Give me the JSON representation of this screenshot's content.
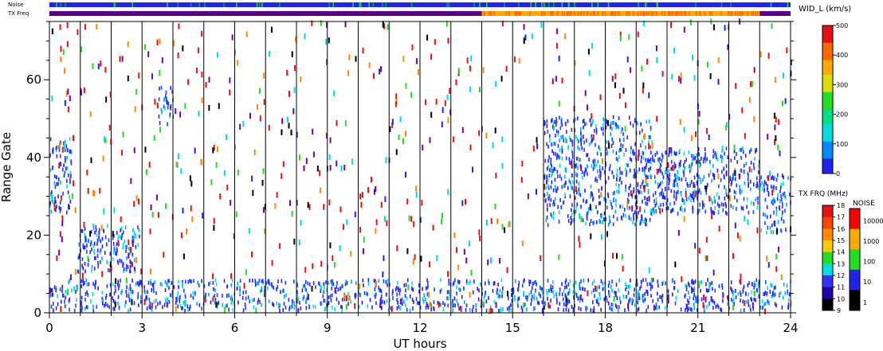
{
  "chart_data": {
    "type": "heatmap",
    "title": "",
    "xlabel": "UT hours",
    "ylabel": "Range Gate",
    "xlim": [
      0,
      24
    ],
    "ylim": [
      0,
      75
    ],
    "x_ticks": [
      "0",
      "3",
      "6",
      "9",
      "12",
      "15",
      "18",
      "21",
      "24"
    ],
    "y_ticks": [
      "0",
      "20",
      "40",
      "60"
    ],
    "vertical_lines_every_hours": 1,
    "top_bars": {
      "noise_label": "Noise",
      "txfreq_label": "TX Freq",
      "txfreq_segments": [
        {
          "start": 0,
          "end": 14,
          "color": "#5a0088"
        },
        {
          "start": 14,
          "end": 23,
          "color": "#ffaa00"
        },
        {
          "start": 23,
          "end": 24,
          "color": "#5a0088"
        }
      ],
      "noise_color": "#2222ee"
    },
    "colorbar_width": {
      "title": "WID_L (km/s)",
      "ticks": [
        "500",
        "400",
        "300",
        "200",
        "100",
        "0"
      ],
      "range": [
        0,
        500
      ]
    },
    "colorbar_txfreq": {
      "title": "TX FRQ (MHz)",
      "ticks": [
        "18",
        "17",
        "16",
        "15",
        "14",
        "13",
        "12",
        "11",
        "10",
        "9"
      ],
      "colors": [
        "#e81010",
        "#ff4400",
        "#ff8800",
        "#ffcc00",
        "#22dd22",
        "#00dddd",
        "#3333ff",
        "#2200aa",
        "#000000"
      ]
    },
    "colorbar_noise": {
      "title": "NOISE",
      "ticks": [
        "10000",
        "1000",
        "100",
        "10",
        "1"
      ],
      "colors": [
        "#ff0000",
        "#ffaa00",
        "#22dd22",
        "#2222ee",
        "#000000"
      ]
    },
    "echo_regions": [
      {
        "t0": 0.0,
        "t1": 0.7,
        "g0": 25,
        "g1": 45
      },
      {
        "t0": 0.9,
        "t1": 2.9,
        "g0": 10,
        "g1": 22
      },
      {
        "t0": 3.5,
        "t1": 4.0,
        "g0": 48,
        "g1": 58
      },
      {
        "t0": 0.0,
        "t1": 24.0,
        "g0": 0,
        "g1": 8
      },
      {
        "t0": 16.0,
        "t1": 19.5,
        "g0": 22,
        "g1": 50
      },
      {
        "t0": 19.5,
        "t1": 23.0,
        "g0": 25,
        "g1": 42
      },
      {
        "t0": 23.0,
        "t1": 24.0,
        "g0": 20,
        "g1": 35
      }
    ]
  }
}
